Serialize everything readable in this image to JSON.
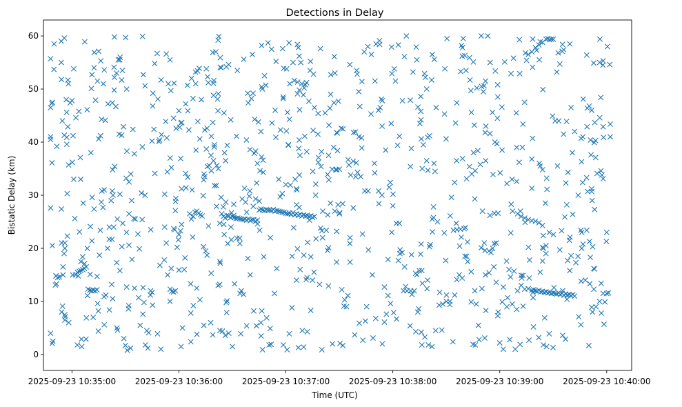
{
  "chart_data": {
    "type": "scatter",
    "title": "Detections in Delay",
    "xlabel": "Time (UTC)",
    "ylabel": "Bistatic Delay (km)",
    "marker": "x",
    "color": "#1f77b4",
    "x_unit": "seconds after 2025-09-23 10:35:00 UTC",
    "xlim": [
      -16,
      314
    ],
    "ylim": [
      -3,
      63
    ],
    "xticks": [
      {
        "value": 0,
        "label": "2025-09-23 10:35:00"
      },
      {
        "value": 60,
        "label": "2025-09-23 10:36:00"
      },
      {
        "value": 120,
        "label": "2025-09-23 10:37:00"
      },
      {
        "value": 180,
        "label": "2025-09-23 10:38:00"
      },
      {
        "value": 240,
        "label": "2025-09-23 10:39:00"
      },
      {
        "value": 300,
        "label": "2025-09-23 10:40:00"
      }
    ],
    "yticks": [
      {
        "value": 0,
        "label": "0"
      },
      {
        "value": 10,
        "label": "10"
      },
      {
        "value": 20,
        "label": "20"
      },
      {
        "value": 30,
        "label": "30"
      },
      {
        "value": 40,
        "label": "40"
      },
      {
        "value": 50,
        "label": "50"
      },
      {
        "value": 60,
        "label": "60"
      }
    ],
    "x_range": [
      -12,
      302
    ],
    "track_points": [
      [
        -12,
        4
      ],
      [
        -12,
        27.6
      ],
      [
        -12,
        41
      ],
      [
        -12,
        40.5
      ],
      [
        -12,
        46.5
      ],
      [
        -11,
        20.5
      ],
      [
        -11,
        47.5
      ],
      [
        -10,
        58.5
      ],
      [
        -9,
        14.8
      ],
      [
        -8,
        14.5
      ],
      [
        -7,
        14.6
      ],
      [
        -6,
        55
      ],
      [
        -6,
        59
      ],
      [
        -5,
        15
      ],
      [
        -5,
        16.5
      ],
      [
        -4,
        20
      ],
      [
        -4,
        21
      ],
      [
        -4,
        7.5
      ],
      [
        -4,
        6.5
      ],
      [
        -3,
        45.6
      ],
      [
        -2,
        51
      ],
      [
        -1,
        47.4
      ],
      [
        0,
        47.8
      ],
      [
        1,
        53.8
      ],
      [
        1,
        33
      ],
      [
        2,
        15
      ],
      [
        3,
        15.5
      ],
      [
        4,
        15.7
      ],
      [
        5,
        15.8
      ],
      [
        6,
        16
      ],
      [
        7,
        16.2
      ],
      [
        8,
        16.5
      ],
      [
        5,
        17.5
      ],
      [
        6,
        18.4
      ],
      [
        9,
        12.3
      ],
      [
        10,
        12.1
      ],
      [
        11,
        12
      ],
      [
        12,
        12.1
      ],
      [
        13,
        12
      ],
      [
        14,
        12.2
      ],
      [
        15,
        40.6
      ],
      [
        16,
        41.2
      ],
      [
        18,
        10.9
      ],
      [
        19,
        11.2
      ],
      [
        20,
        20
      ],
      [
        21,
        24
      ],
      [
        22,
        29
      ],
      [
        23,
        30
      ],
      [
        24,
        35.4
      ],
      [
        25,
        53
      ],
      [
        26,
        55.5
      ],
      [
        27,
        56
      ],
      [
        28,
        20.3
      ],
      [
        30,
        1.7
      ],
      [
        31,
        0.8
      ],
      [
        33,
        34
      ],
      [
        35,
        37.8
      ],
      [
        37,
        22.7
      ],
      [
        39,
        30.4
      ],
      [
        40,
        52.7
      ],
      [
        41,
        50.6
      ],
      [
        42,
        4.5
      ],
      [
        43,
        4.1
      ],
      [
        44,
        11.2
      ],
      [
        45,
        11.7
      ],
      [
        46,
        42.4
      ],
      [
        48,
        3.9
      ],
      [
        50,
        51.7
      ],
      [
        52,
        24
      ],
      [
        54,
        51
      ],
      [
        55,
        10
      ],
      [
        56,
        11.9
      ],
      [
        57,
        11.8
      ],
      [
        58,
        12
      ],
      [
        59,
        20.2
      ],
      [
        60,
        22.6
      ],
      [
        61,
        36.9
      ],
      [
        62,
        5
      ],
      [
        63,
        16
      ],
      [
        64,
        31.4
      ],
      [
        65,
        45.9
      ],
      [
        66,
        26.5
      ],
      [
        67,
        25.5
      ],
      [
        68,
        26
      ],
      [
        69,
        26.8
      ],
      [
        70,
        27
      ],
      [
        71,
        26.6
      ],
      [
        72,
        26.3
      ],
      [
        73,
        26.1
      ],
      [
        74,
        5.5
      ],
      [
        75,
        19.5
      ],
      [
        76,
        35.4
      ],
      [
        77,
        35.6
      ],
      [
        78,
        37.5
      ],
      [
        79,
        43.7
      ],
      [
        80,
        31.8
      ],
      [
        81,
        31.8
      ],
      [
        82,
        13
      ],
      [
        83,
        4.5
      ],
      [
        84,
        26.5
      ],
      [
        85,
        26
      ],
      [
        86,
        25.7
      ],
      [
        87,
        26.2
      ],
      [
        88,
        26.1
      ],
      [
        89,
        25.8
      ],
      [
        90,
        26
      ],
      [
        91,
        25.8
      ],
      [
        92,
        25.6
      ],
      [
        93,
        25.7
      ],
      [
        94,
        25.6
      ],
      [
        95,
        25.5
      ],
      [
        96,
        25.4
      ],
      [
        97,
        25.5
      ],
      [
        98,
        25.3
      ],
      [
        99,
        25.5
      ],
      [
        100,
        25.2
      ],
      [
        101,
        25.4
      ],
      [
        102,
        25.4
      ],
      [
        103,
        25.1
      ],
      [
        104,
        25.3
      ],
      [
        105,
        27.2
      ],
      [
        106,
        27.4
      ],
      [
        107,
        27.2
      ],
      [
        108,
        27.1
      ],
      [
        109,
        27.3
      ],
      [
        110,
        27.2
      ],
      [
        111,
        27.2
      ],
      [
        112,
        27.1
      ],
      [
        113,
        27.3
      ],
      [
        114,
        27.0
      ],
      [
        115,
        27.1
      ],
      [
        116,
        27.0
      ],
      [
        117,
        26.9
      ],
      [
        118,
        26.8
      ],
      [
        119,
        26.8
      ],
      [
        120,
        26.6
      ],
      [
        121,
        26.5
      ],
      [
        122,
        26.6
      ],
      [
        123,
        26.4
      ],
      [
        124,
        26.7
      ],
      [
        125,
        26.3
      ],
      [
        126,
        26.5
      ],
      [
        127,
        26.2
      ],
      [
        128,
        26.4
      ],
      [
        129,
        26.1
      ],
      [
        130,
        26.3
      ],
      [
        131,
        26.1
      ],
      [
        132,
        26.2
      ],
      [
        133,
        26.0
      ],
      [
        134,
        26.1
      ],
      [
        135,
        25.8
      ],
      [
        136,
        26
      ],
      [
        90,
        1.5
      ],
      [
        88,
        4
      ],
      [
        86,
        3.6
      ],
      [
        95,
        12
      ],
      [
        100,
        15
      ],
      [
        102,
        8.2
      ],
      [
        104,
        36
      ],
      [
        106,
        42
      ],
      [
        108,
        52.5
      ],
      [
        110,
        58.7
      ],
      [
        112,
        57.5
      ],
      [
        114,
        46
      ],
      [
        116,
        33
      ],
      [
        118,
        30.3
      ],
      [
        120,
        32
      ],
      [
        122,
        44.3
      ],
      [
        124,
        55
      ],
      [
        126,
        14
      ],
      [
        128,
        16
      ],
      [
        130,
        1.4
      ],
      [
        132,
        4.3
      ],
      [
        134,
        8.3
      ],
      [
        136,
        46.5
      ],
      [
        138,
        41.5
      ],
      [
        140,
        38.2
      ],
      [
        142,
        45.5
      ],
      [
        144,
        37.5
      ],
      [
        146,
        34.9
      ],
      [
        148,
        34.8
      ],
      [
        150,
        34.9
      ],
      [
        152,
        42.5
      ],
      [
        154,
        9
      ],
      [
        156,
        22
      ],
      [
        158,
        41.8
      ],
      [
        160,
        52.8
      ],
      [
        162,
        33.5
      ],
      [
        164,
        57
      ],
      [
        166,
        58
      ],
      [
        168,
        56.5
      ],
      [
        170,
        51.5
      ],
      [
        172,
        46
      ],
      [
        174,
        43
      ],
      [
        176,
        38.5
      ],
      [
        178,
        31.5
      ],
      [
        180,
        28
      ],
      [
        182,
        24.7
      ],
      [
        184,
        19
      ],
      [
        186,
        12
      ],
      [
        188,
        12
      ],
      [
        190,
        12
      ],
      [
        192,
        12
      ],
      [
        194,
        8
      ],
      [
        196,
        4.2
      ],
      [
        198,
        3.3
      ],
      [
        200,
        1.8
      ],
      [
        202,
        1.5
      ],
      [
        204,
        4.5
      ],
      [
        206,
        9.3
      ],
      [
        208,
        9.5
      ],
      [
        210,
        10
      ],
      [
        212,
        10
      ],
      [
        214,
        23.4
      ],
      [
        216,
        23.5
      ],
      [
        218,
        23.6
      ],
      [
        220,
        23.7
      ],
      [
        222,
        17.5
      ],
      [
        224,
        15.6
      ],
      [
        226,
        12
      ],
      [
        228,
        5.5
      ],
      [
        230,
        12.4
      ],
      [
        232,
        15
      ],
      [
        234,
        19.5
      ],
      [
        236,
        20
      ],
      [
        238,
        21
      ],
      [
        240,
        2.2
      ],
      [
        242,
        1
      ],
      [
        244,
        9
      ],
      [
        246,
        14.6
      ],
      [
        248,
        15.7
      ],
      [
        250,
        12
      ],
      [
        252,
        13
      ],
      [
        254,
        12.3
      ],
      [
        256,
        12.4
      ],
      [
        258,
        12.1
      ],
      [
        259,
        12.2
      ],
      [
        260,
        12.0
      ],
      [
        261,
        11.9
      ],
      [
        262,
        12.1
      ],
      [
        263,
        11.8
      ],
      [
        264,
        11.9
      ],
      [
        265,
        11.7
      ],
      [
        266,
        11.8
      ],
      [
        267,
        11.6
      ],
      [
        268,
        11.7
      ],
      [
        269,
        11.5
      ],
      [
        270,
        11.6
      ],
      [
        271,
        11.5
      ],
      [
        272,
        11.4
      ],
      [
        273,
        11.6
      ],
      [
        274,
        11.3
      ],
      [
        275,
        11.5
      ],
      [
        276,
        11.2
      ],
      [
        277,
        11.4
      ],
      [
        278,
        11.2
      ],
      [
        279,
        11.3
      ],
      [
        280,
        11.1
      ],
      [
        281,
        11.3
      ],
      [
        282,
        11
      ],
      [
        250,
        26.5
      ],
      [
        252,
        26
      ],
      [
        254,
        25.7
      ],
      [
        256,
        25.4
      ],
      [
        258,
        25.2
      ],
      [
        260,
        25.1
      ],
      [
        262,
        24.8
      ],
      [
        264,
        24.3
      ],
      [
        266,
        59.4
      ],
      [
        267,
        59.5
      ],
      [
        268,
        59.3
      ],
      [
        269,
        59.4
      ],
      [
        270,
        59.4
      ],
      [
        256,
        56.5
      ],
      [
        258,
        57
      ],
      [
        260,
        57.8
      ],
      [
        262,
        58.3
      ],
      [
        264,
        58.8
      ],
      [
        280,
        46.5
      ],
      [
        282,
        42
      ],
      [
        284,
        30
      ],
      [
        286,
        20
      ],
      [
        288,
        14
      ],
      [
        290,
        1.7
      ],
      [
        292,
        8
      ],
      [
        294,
        9
      ],
      [
        296,
        10
      ],
      [
        298,
        11.5
      ],
      [
        300,
        11.5
      ],
      [
        301,
        11.6
      ],
      [
        296,
        55
      ],
      [
        298,
        55.3
      ],
      [
        300,
        23
      ],
      [
        302,
        43.4
      ],
      [
        302,
        41
      ]
    ],
    "n_clutter_points": 820,
    "clutter_seed": 98765
  }
}
